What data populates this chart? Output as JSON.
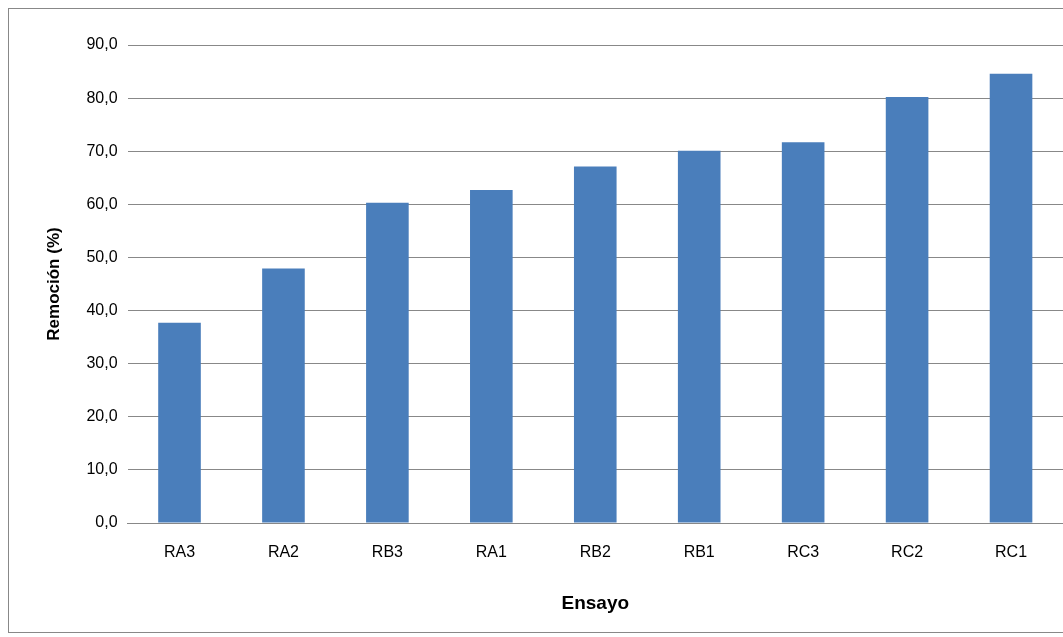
{
  "chart_data": {
    "type": "bar",
    "xlabel": "Ensayo",
    "ylabel": "Remoción (%)",
    "categories": [
      "RA3",
      "RA2",
      "RB3",
      "RA1",
      "RB2",
      "RB1",
      "RC3",
      "RC2",
      "RC1"
    ],
    "values": [
      37.7,
      47.9,
      60.3,
      62.7,
      67.1,
      70.1,
      71.7,
      80.2,
      84.6
    ],
    "color": "#4a7ebb",
    "ylim": [
      0,
      90
    ],
    "yticks": [
      {
        "value": 0,
        "label": "0,0"
      },
      {
        "value": 10,
        "label": "10,0"
      },
      {
        "value": 20,
        "label": "20,0"
      },
      {
        "value": 30,
        "label": "30,0"
      },
      {
        "value": 40,
        "label": "40,0"
      },
      {
        "value": 50,
        "label": "50,0"
      },
      {
        "value": 60,
        "label": "60,0"
      },
      {
        "value": 70,
        "label": "70,0"
      },
      {
        "value": 80,
        "label": "80,0"
      },
      {
        "value": 90,
        "label": "90,0"
      }
    ],
    "grid": "y",
    "legend": false
  }
}
